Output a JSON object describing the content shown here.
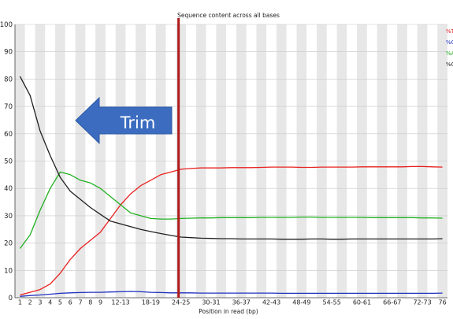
{
  "chart_data": {
    "type": "line",
    "title": "Sequence content across all bases",
    "xlabel": "Position in read (bp)",
    "ylabel": "",
    "ylim": [
      0,
      100
    ],
    "yticks": [
      0,
      10,
      20,
      30,
      40,
      50,
      60,
      70,
      80,
      90,
      100
    ],
    "categories": [
      "1",
      "2",
      "3",
      "4",
      "5",
      "6",
      "7",
      "8",
      "9",
      "10-11",
      "12-13",
      "14-15",
      "16-17",
      "18-19",
      "20-21",
      "22-23",
      "24-25",
      "26-27",
      "28-29",
      "30-31",
      "32-33",
      "34-35",
      "36-37",
      "38-39",
      "40-41",
      "42-43",
      "44-45",
      "46-47",
      "48-49",
      "50-51",
      "52-53",
      "54-55",
      "56-57",
      "58-59",
      "60-61",
      "62-63",
      "64-65",
      "66-67",
      "68-69",
      "70-71",
      "72-73",
      "74-75",
      "76"
    ],
    "tick_labels": [
      "1",
      "2",
      "3",
      "4",
      "5",
      "6",
      "7",
      "8",
      "9",
      "12-13",
      "18-19",
      "24-25",
      "30-31",
      "36-37",
      "42-43",
      "48-49",
      "54-55",
      "60-61",
      "66-67",
      "72-73",
      "76"
    ],
    "grid": true,
    "legend": {
      "placement": "right",
      "entries": [
        "%T",
        "%C",
        "%A",
        "%G"
      ],
      "colors": [
        "#e8201f",
        "#2030c0",
        "#20b020",
        "#202020"
      ]
    },
    "series": [
      {
        "name": "%T",
        "color": "#e8201f",
        "values": [
          1,
          2,
          3,
          5,
          9,
          14,
          18,
          21,
          24,
          29,
          34,
          38,
          41,
          43,
          45,
          46,
          47,
          47.3,
          47.5,
          47.5,
          47.5,
          47.6,
          47.6,
          47.6,
          47.7,
          47.8,
          47.8,
          47.8,
          47.7,
          47.7,
          47.8,
          47.8,
          47.8,
          47.8,
          47.9,
          47.9,
          47.9,
          47.9,
          47.9,
          48,
          48,
          47.9,
          47.8
        ]
      },
      {
        "name": "%C",
        "color": "#2030c0",
        "values": [
          0.5,
          0.8,
          1,
          1.3,
          1.6,
          1.8,
          1.9,
          2,
          2,
          2.1,
          2.2,
          2.3,
          2.2,
          2,
          1.9,
          1.8,
          1.8,
          1.8,
          1.7,
          1.7,
          1.7,
          1.7,
          1.7,
          1.7,
          1.7,
          1.7,
          1.6,
          1.6,
          1.6,
          1.6,
          1.6,
          1.6,
          1.6,
          1.6,
          1.6,
          1.6,
          1.6,
          1.6,
          1.6,
          1.6,
          1.6,
          1.6,
          1.7
        ]
      },
      {
        "name": "%A",
        "color": "#20b020",
        "values": [
          18,
          23,
          32,
          40,
          46,
          45,
          43,
          42,
          40,
          37,
          34,
          31,
          30,
          29,
          28.8,
          28.8,
          29,
          29.1,
          29.2,
          29.2,
          29.3,
          29.3,
          29.3,
          29.3,
          29.4,
          29.4,
          29.4,
          29.4,
          29.5,
          29.5,
          29.4,
          29.4,
          29.4,
          29.4,
          29.4,
          29.3,
          29.3,
          29.3,
          29.3,
          29.3,
          29.2,
          29.2,
          29.1
        ]
      },
      {
        "name": "%G",
        "color": "#202020",
        "values": [
          81,
          74,
          61,
          52,
          44,
          39,
          36,
          33,
          30.5,
          28,
          27,
          26,
          25,
          24.2,
          23.5,
          22.8,
          22.2,
          22,
          21.8,
          21.7,
          21.6,
          21.6,
          21.5,
          21.5,
          21.5,
          21.5,
          21.4,
          21.4,
          21.4,
          21.5,
          21.5,
          21.4,
          21.4,
          21.5,
          21.5,
          21.5,
          21.5,
          21.5,
          21.5,
          21.5,
          21.5,
          21.5,
          21.6
        ]
      }
    ],
    "annotations": [
      {
        "type": "vertical-line",
        "at_category": "24-25",
        "color": "#b01818"
      },
      {
        "type": "arrow",
        "label": "Trim",
        "direction": "left",
        "color": "#3b6cc0",
        "text_color": "#ffffff"
      }
    ]
  }
}
